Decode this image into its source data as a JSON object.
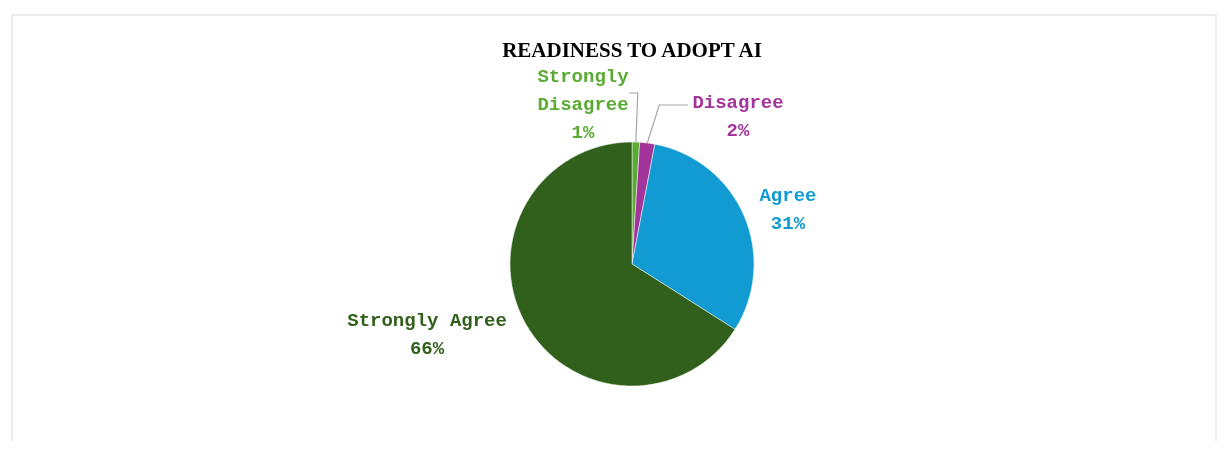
{
  "chart_data": {
    "type": "pie",
    "title": "READINESS TO ADOPT AI",
    "categories": [
      "Strongly Disagree",
      "Disagree",
      "Agree",
      "Strongly Agree"
    ],
    "values": [
      1,
      2,
      31,
      66
    ],
    "colors": [
      "#5aab34",
      "#a2349c",
      "#129bd2",
      "#30601b"
    ],
    "value_labels": [
      "1%",
      "2%",
      "31%",
      "66%"
    ],
    "data_labels": true
  }
}
